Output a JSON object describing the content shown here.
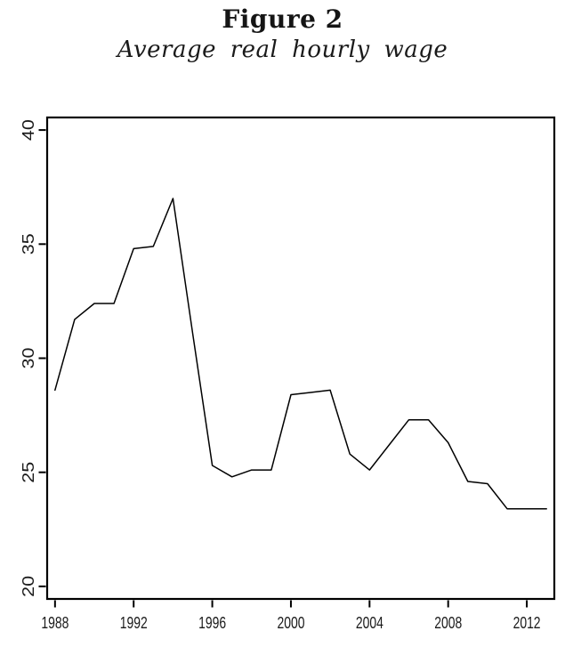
{
  "figure": {
    "title": "Figure 2",
    "subtitle": "Average real hourly wage"
  },
  "chart_data": {
    "type": "line",
    "title": "Figure 2",
    "subtitle": "Average real hourly wage",
    "xlabel": "",
    "ylabel": "",
    "x": [
      1988,
      1989,
      1990,
      1991,
      1992,
      1993,
      1994,
      1995,
      1996,
      1997,
      1998,
      1999,
      2000,
      2001,
      2002,
      2003,
      2004,
      2005,
      2006,
      2007,
      2008,
      2009,
      2010,
      2011,
      2012,
      2013
    ],
    "series": [
      {
        "name": "Average real hourly wage",
        "values": [
          28.6,
          31.7,
          32.4,
          32.4,
          34.8,
          34.9,
          37.0,
          31.1,
          25.3,
          24.8,
          25.1,
          25.1,
          28.4,
          28.5,
          28.6,
          25.8,
          25.1,
          26.2,
          27.3,
          27.3,
          26.3,
          24.6,
          24.5,
          23.4,
          23.4,
          23.4
        ]
      }
    ],
    "xticks": [
      1988,
      1992,
      1996,
      2000,
      2004,
      2008,
      2012
    ],
    "yticks": [
      20,
      25,
      30,
      35,
      40
    ],
    "xlim": [
      1987.6,
      2013.4
    ],
    "ylim": [
      19.45,
      40.55
    ],
    "grid": false,
    "legend": "none",
    "line_color": "#000000",
    "axis_color": "#000000",
    "tick_label_color": "#1a1a1a"
  }
}
